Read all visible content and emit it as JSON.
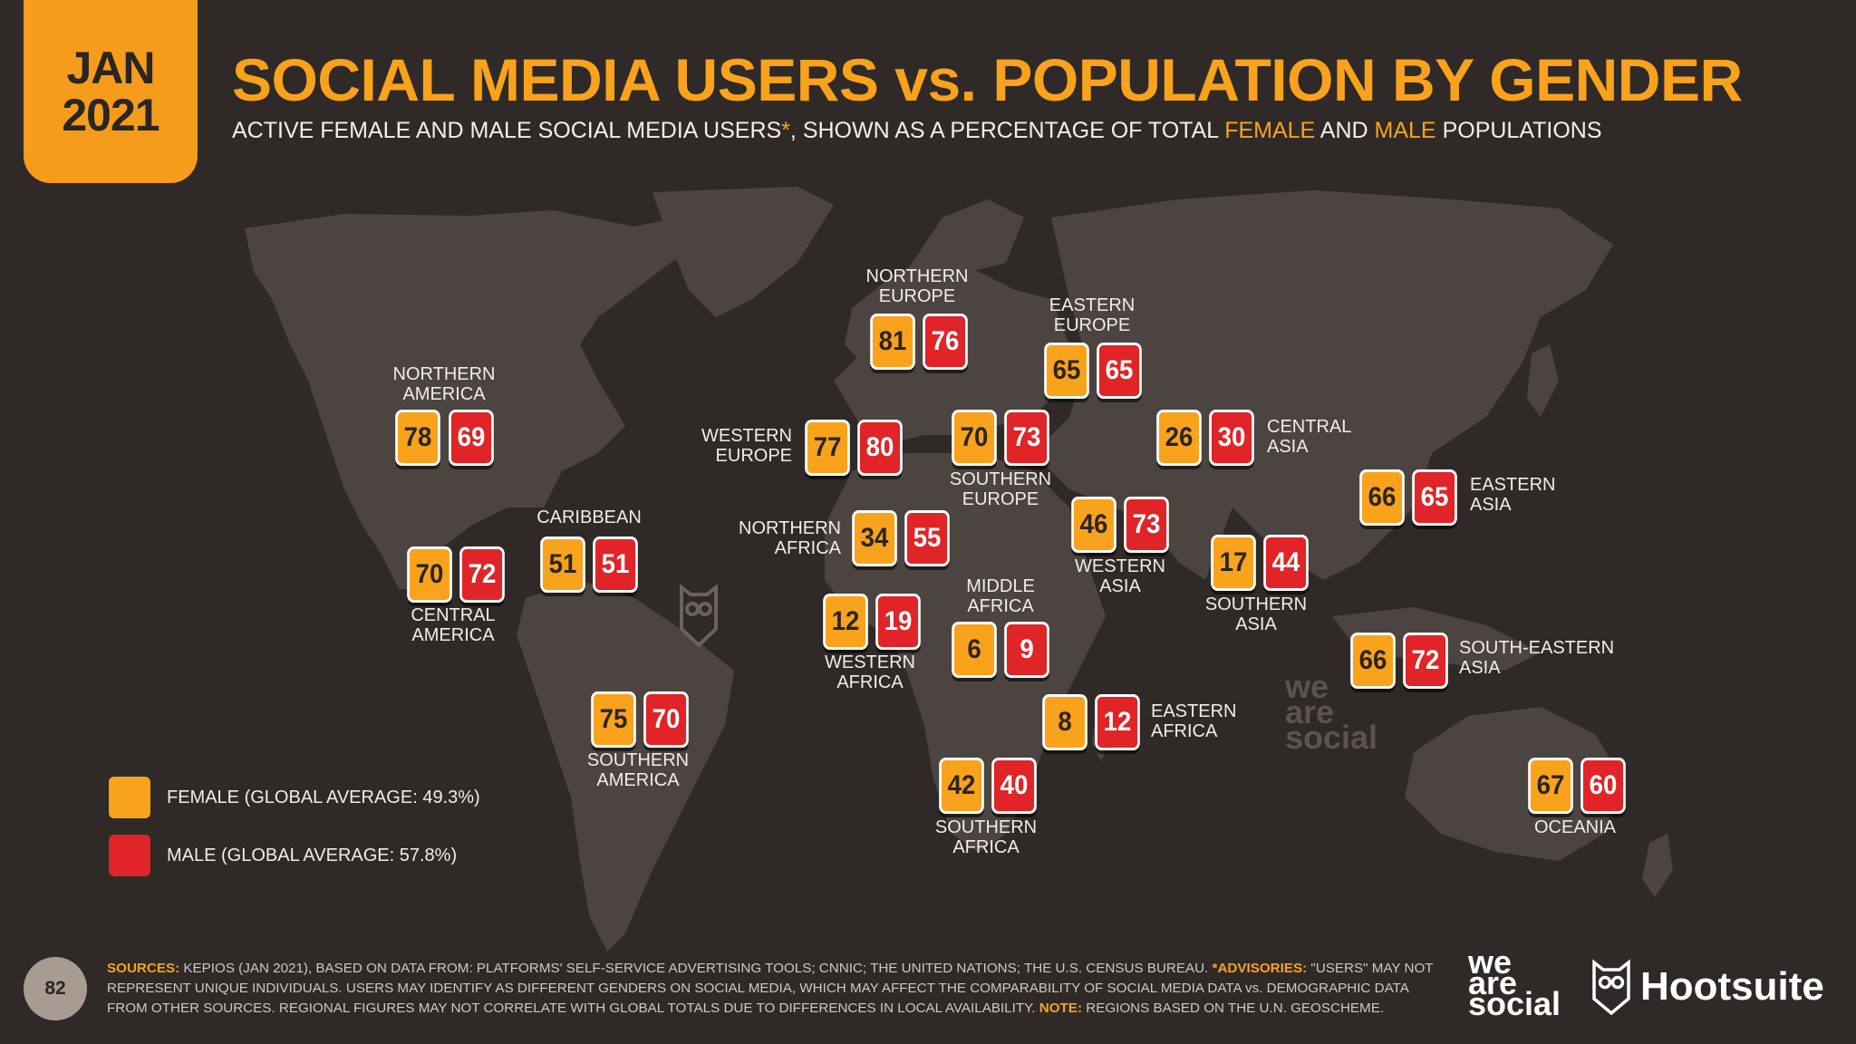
{
  "header": {
    "month": "JAN",
    "year": "2021",
    "title": "SOCIAL MEDIA USERS vs. POPULATION BY GENDER",
    "subtitle_part1": "ACTIVE FEMALE AND MALE SOCIAL MEDIA USERS",
    "subtitle_asterisk": "*",
    "subtitle_part2": ", SHOWN AS A PERCENTAGE OF TOTAL ",
    "subtitle_female": "FEMALE",
    "subtitle_part3": " AND ",
    "subtitle_male": "MALE",
    "subtitle_part4": " POPULATIONS"
  },
  "colors": {
    "female": "#f9a21b",
    "male": "#e02427",
    "background": "#2f2a28",
    "land": "#4b4441"
  },
  "regions": [
    {
      "id": "northern-america",
      "label": "NORTHERN AMERICA",
      "female": 78,
      "male": 69
    },
    {
      "id": "central-america",
      "label": "CENTRAL AMERICA",
      "female": 70,
      "male": 72
    },
    {
      "id": "caribbean",
      "label": "CARIBBEAN",
      "female": 51,
      "male": 51
    },
    {
      "id": "southern-america",
      "label": "SOUTHERN AMERICA",
      "female": 75,
      "male": 70
    },
    {
      "id": "northern-europe",
      "label": "NORTHERN EUROPE",
      "female": 81,
      "male": 76
    },
    {
      "id": "western-europe",
      "label": "WESTERN EUROPE",
      "female": 77,
      "male": 80
    },
    {
      "id": "southern-europe",
      "label": "SOUTHERN EUROPE",
      "female": 70,
      "male": 73
    },
    {
      "id": "eastern-europe",
      "label": "EASTERN EUROPE",
      "female": 65,
      "male": 65
    },
    {
      "id": "northern-africa",
      "label": "NORTHERN AFRICA",
      "female": 34,
      "male": 55
    },
    {
      "id": "western-africa",
      "label": "WESTERN AFRICA",
      "female": 12,
      "male": 19
    },
    {
      "id": "middle-africa",
      "label": "MIDDLE AFRICA",
      "female": 6,
      "male": 9
    },
    {
      "id": "eastern-africa",
      "label": "EASTERN AFRICA",
      "female": 8,
      "male": 12
    },
    {
      "id": "southern-africa",
      "label": "SOUTHERN AFRICA",
      "female": 42,
      "male": 40
    },
    {
      "id": "western-asia",
      "label": "WESTERN ASIA",
      "female": 46,
      "male": 73
    },
    {
      "id": "central-asia",
      "label": "CENTRAL ASIA",
      "female": 26,
      "male": 30
    },
    {
      "id": "southern-asia",
      "label": "SOUTHERN ASIA",
      "female": 17,
      "male": 44
    },
    {
      "id": "eastern-asia",
      "label": "EASTERN ASIA",
      "female": 66,
      "male": 65
    },
    {
      "id": "south-eastern-asia",
      "label": "SOUTH-EASTERN ASIA",
      "female": 66,
      "male": 72
    },
    {
      "id": "oceania",
      "label": "OCEANIA",
      "female": 67,
      "male": 60
    }
  ],
  "legend": {
    "female": "FEMALE (GLOBAL AVERAGE: 49.3%)",
    "male": "MALE (GLOBAL AVERAGE: 57.8%)"
  },
  "footer": {
    "page_number": "82",
    "sources_label": "SOURCES:",
    "sources_text": " KEPIOS (JAN 2021), BASED ON DATA FROM: PLATFORMS' SELF-SERVICE ADVERTISING TOOLS; CNNIC; THE UNITED NATIONS; THE U.S. CENSUS BUREAU. ",
    "advisories_label": "*ADVISORIES:",
    "advisories_text": " \"USERS\" MAY NOT REPRESENT UNIQUE INDIVIDUALS. USERS MAY IDENTIFY AS DIFFERENT GENDERS ON SOCIAL MEDIA, WHICH MAY AFFECT THE COMPARABILITY OF SOCIAL MEDIA DATA vs. DEMOGRAPHIC DATA FROM OTHER SOURCES. REGIONAL FIGURES MAY NOT CORRELATE WITH GLOBAL TOTALS DUE TO DIFFERENCES IN LOCAL AVAILABILITY. ",
    "note_label": "NOTE:",
    "note_text": " REGIONS BASED ON THE U.N. GEOSCHEME.",
    "brand_was": [
      "we",
      "are",
      "social"
    ],
    "brand_hootsuite": "Hootsuite",
    "watermark": [
      "we",
      "are",
      "social"
    ]
  }
}
